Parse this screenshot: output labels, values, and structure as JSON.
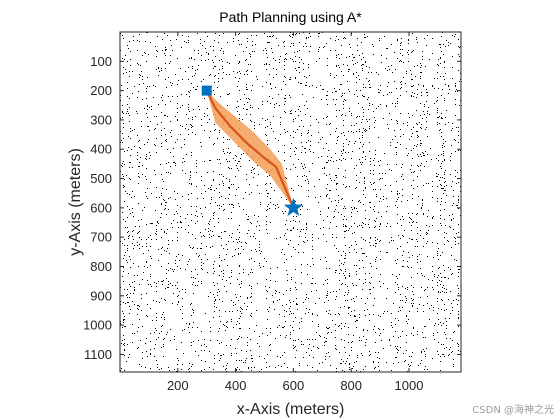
{
  "chart_data": {
    "type": "scatter",
    "title": "Path Planning using A*",
    "xlabel": "x-Axis (meters)",
    "ylabel": "y-Axis (meters)",
    "xlim": [
      0,
      1180
    ],
    "ylim": [
      0,
      1160
    ],
    "y_reversed": true,
    "grid": false,
    "xticks": [
      200,
      400,
      600,
      800,
      1000
    ],
    "yticks": [
      100,
      200,
      300,
      400,
      500,
      600,
      700,
      800,
      900,
      1000,
      1100
    ],
    "background": "obstacle occupancy map (black dots on white)",
    "start": {
      "x": 300,
      "y": 200,
      "marker": "square",
      "color": "#0072BD"
    },
    "goal": {
      "x": 600,
      "y": 600,
      "marker": "pentagram",
      "color": "#0072BD"
    },
    "path": {
      "color": "#D95319",
      "x": [
        300,
        330,
        380,
        440,
        500,
        540,
        600
      ],
      "y": [
        200,
        260,
        320,
        380,
        430,
        460,
        600
      ]
    },
    "path_band": {
      "color": "#F4A35E",
      "upper": {
        "x": [
          300,
          340,
          400,
          460,
          520,
          560,
          600
        ],
        "y": [
          200,
          240,
          290,
          340,
          400,
          450,
          600
        ]
      },
      "lower": {
        "x": [
          600,
          520,
          460,
          400,
          330,
          300
        ],
        "y": [
          600,
          490,
          440,
          380,
          310,
          200
        ]
      }
    }
  },
  "watermark": "CSDN @海神之光"
}
